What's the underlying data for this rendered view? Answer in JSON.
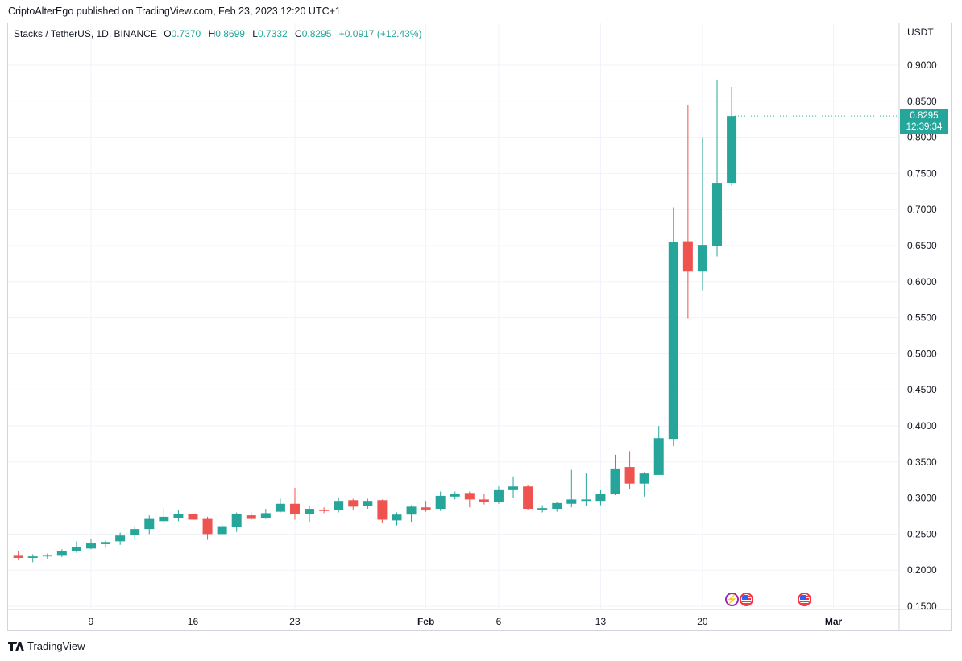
{
  "header": {
    "publisher_line": "CriptoAlterEgo published on TradingView.com, Feb 23, 2023 12:20 UTC+1"
  },
  "legend": {
    "symbol": "Stacks / TetherUS, 1D, BINANCE",
    "o_label": "O",
    "o_value": "0.7370",
    "h_label": "H",
    "h_value": "0.8699",
    "l_label": "L",
    "l_value": "0.7332",
    "c_label": "C",
    "c_value": "0.8295",
    "change": "+0.0917 (+12.43%)"
  },
  "price_tag": {
    "price": "0.8295",
    "countdown": "12:39:34"
  },
  "footer": {
    "brand": "TradingView"
  },
  "colors": {
    "up": "#26a69a",
    "down": "#ef5350",
    "grid": "#f0f3fa",
    "axis_text": "#131722"
  },
  "events": [
    {
      "icon": "lightning-event-icon",
      "x": "2023-02-22"
    },
    {
      "icon": "us-flag-event-icon",
      "x": "2023-02-23"
    },
    {
      "icon": "us-flag-event-icon",
      "x": "2023-02-27"
    }
  ],
  "chart_data": {
    "type": "candlestick",
    "title": "Stacks / TetherUS, 1D, BINANCE",
    "ylabel": "USDT",
    "y_axis_side": "right",
    "ylim": [
      0.145,
      0.95
    ],
    "y_ticks": [
      "0.9000",
      "0.8500",
      "0.8000",
      "0.7500",
      "0.7000",
      "0.6500",
      "0.6000",
      "0.5500",
      "0.5000",
      "0.4500",
      "0.4000",
      "0.3500",
      "0.3000",
      "0.2500",
      "0.2000",
      "0.1500"
    ],
    "x_ticks": [
      {
        "label": "9",
        "date": "2023-01-09"
      },
      {
        "label": "16",
        "date": "2023-01-16"
      },
      {
        "label": "23",
        "date": "2023-01-23"
      },
      {
        "label": "Feb",
        "date": "2023-02-01",
        "bold": true
      },
      {
        "label": "6",
        "date": "2023-02-06"
      },
      {
        "label": "13",
        "date": "2023-02-13"
      },
      {
        "label": "20",
        "date": "2023-02-20"
      },
      {
        "label": "Mar",
        "date": "2023-03-01",
        "bold": true
      }
    ],
    "candles": [
      {
        "date": "2023-01-03",
        "o": 0.216,
        "h": 0.225,
        "l": 0.213,
        "c": 0.221
      },
      {
        "date": "2023-01-04",
        "o": 0.221,
        "h": 0.227,
        "l": 0.215,
        "c": 0.217
      },
      {
        "date": "2023-01-05",
        "o": 0.217,
        "h": 0.222,
        "l": 0.211,
        "c": 0.219
      },
      {
        "date": "2023-01-06",
        "o": 0.219,
        "h": 0.223,
        "l": 0.216,
        "c": 0.221
      },
      {
        "date": "2023-01-07",
        "o": 0.221,
        "h": 0.229,
        "l": 0.218,
        "c": 0.227
      },
      {
        "date": "2023-01-08",
        "o": 0.227,
        "h": 0.24,
        "l": 0.224,
        "c": 0.232
      },
      {
        "date": "2023-01-09",
        "o": 0.23,
        "h": 0.243,
        "l": 0.229,
        "c": 0.237
      },
      {
        "date": "2023-01-10",
        "o": 0.236,
        "h": 0.241,
        "l": 0.231,
        "c": 0.239
      },
      {
        "date": "2023-01-11",
        "o": 0.24,
        "h": 0.252,
        "l": 0.235,
        "c": 0.248
      },
      {
        "date": "2023-01-12",
        "o": 0.249,
        "h": 0.261,
        "l": 0.244,
        "c": 0.257
      },
      {
        "date": "2023-01-13",
        "o": 0.257,
        "h": 0.276,
        "l": 0.25,
        "c": 0.271
      },
      {
        "date": "2023-01-14",
        "o": 0.268,
        "h": 0.286,
        "l": 0.264,
        "c": 0.274
      },
      {
        "date": "2023-01-15",
        "o": 0.272,
        "h": 0.283,
        "l": 0.268,
        "c": 0.278
      },
      {
        "date": "2023-01-16",
        "o": 0.278,
        "h": 0.281,
        "l": 0.269,
        "c": 0.27
      },
      {
        "date": "2023-01-17",
        "o": 0.271,
        "h": 0.274,
        "l": 0.242,
        "c": 0.25
      },
      {
        "date": "2023-01-18",
        "o": 0.25,
        "h": 0.264,
        "l": 0.248,
        "c": 0.261
      },
      {
        "date": "2023-01-19",
        "o": 0.26,
        "h": 0.28,
        "l": 0.253,
        "c": 0.278
      },
      {
        "date": "2023-01-20",
        "o": 0.276,
        "h": 0.28,
        "l": 0.27,
        "c": 0.271
      },
      {
        "date": "2023-01-21",
        "o": 0.272,
        "h": 0.285,
        "l": 0.271,
        "c": 0.279
      },
      {
        "date": "2023-01-22",
        "o": 0.281,
        "h": 0.299,
        "l": 0.28,
        "c": 0.292
      },
      {
        "date": "2023-01-23",
        "o": 0.292,
        "h": 0.314,
        "l": 0.27,
        "c": 0.278
      },
      {
        "date": "2023-01-24",
        "o": 0.278,
        "h": 0.289,
        "l": 0.267,
        "c": 0.285
      },
      {
        "date": "2023-01-25",
        "o": 0.284,
        "h": 0.287,
        "l": 0.279,
        "c": 0.282
      },
      {
        "date": "2023-01-26",
        "o": 0.283,
        "h": 0.301,
        "l": 0.28,
        "c": 0.296
      },
      {
        "date": "2023-01-27",
        "o": 0.297,
        "h": 0.299,
        "l": 0.283,
        "c": 0.288
      },
      {
        "date": "2023-01-28",
        "o": 0.289,
        "h": 0.299,
        "l": 0.285,
        "c": 0.296
      },
      {
        "date": "2023-01-29",
        "o": 0.297,
        "h": 0.298,
        "l": 0.265,
        "c": 0.27
      },
      {
        "date": "2023-01-30",
        "o": 0.269,
        "h": 0.28,
        "l": 0.262,
        "c": 0.277
      },
      {
        "date": "2023-01-31",
        "o": 0.277,
        "h": 0.29,
        "l": 0.267,
        "c": 0.288
      },
      {
        "date": "2023-02-01",
        "o": 0.287,
        "h": 0.296,
        "l": 0.281,
        "c": 0.284
      },
      {
        "date": "2023-02-02",
        "o": 0.285,
        "h": 0.309,
        "l": 0.282,
        "c": 0.303
      },
      {
        "date": "2023-02-03",
        "o": 0.302,
        "h": 0.309,
        "l": 0.298,
        "c": 0.306
      },
      {
        "date": "2023-02-04",
        "o": 0.307,
        "h": 0.309,
        "l": 0.287,
        "c": 0.298
      },
      {
        "date": "2023-02-05",
        "o": 0.298,
        "h": 0.306,
        "l": 0.291,
        "c": 0.294
      },
      {
        "date": "2023-02-06",
        "o": 0.295,
        "h": 0.316,
        "l": 0.292,
        "c": 0.312
      },
      {
        "date": "2023-02-07",
        "o": 0.312,
        "h": 0.33,
        "l": 0.3,
        "c": 0.316
      },
      {
        "date": "2023-02-08",
        "o": 0.316,
        "h": 0.318,
        "l": 0.284,
        "c": 0.285
      },
      {
        "date": "2023-02-09",
        "o": 0.284,
        "h": 0.29,
        "l": 0.28,
        "c": 0.286
      },
      {
        "date": "2023-02-10",
        "o": 0.285,
        "h": 0.295,
        "l": 0.281,
        "c": 0.293
      },
      {
        "date": "2023-02-11",
        "o": 0.292,
        "h": 0.339,
        "l": 0.287,
        "c": 0.298
      },
      {
        "date": "2023-02-12",
        "o": 0.296,
        "h": 0.334,
        "l": 0.289,
        "c": 0.298
      },
      {
        "date": "2023-02-13",
        "o": 0.296,
        "h": 0.311,
        "l": 0.29,
        "c": 0.306
      },
      {
        "date": "2023-02-14",
        "o": 0.306,
        "h": 0.36,
        "l": 0.304,
        "c": 0.341
      },
      {
        "date": "2023-02-15",
        "o": 0.343,
        "h": 0.365,
        "l": 0.313,
        "c": 0.32
      },
      {
        "date": "2023-02-16",
        "o": 0.32,
        "h": 0.336,
        "l": 0.302,
        "c": 0.334
      },
      {
        "date": "2023-02-17",
        "o": 0.332,
        "h": 0.4,
        "l": 0.332,
        "c": 0.383
      },
      {
        "date": "2023-02-18",
        "o": 0.382,
        "h": 0.703,
        "l": 0.372,
        "c": 0.655
      },
      {
        "date": "2023-02-19",
        "o": 0.656,
        "h": 0.845,
        "l": 0.549,
        "c": 0.614
      },
      {
        "date": "2023-02-20",
        "o": 0.614,
        "h": 0.8,
        "l": 0.588,
        "c": 0.651
      },
      {
        "date": "2023-02-21",
        "o": 0.649,
        "h": 0.88,
        "l": 0.635,
        "c": 0.737
      },
      {
        "date": "2023-02-22",
        "o": 0.737,
        "h": 0.8699,
        "l": 0.7332,
        "c": 0.8295
      }
    ]
  }
}
